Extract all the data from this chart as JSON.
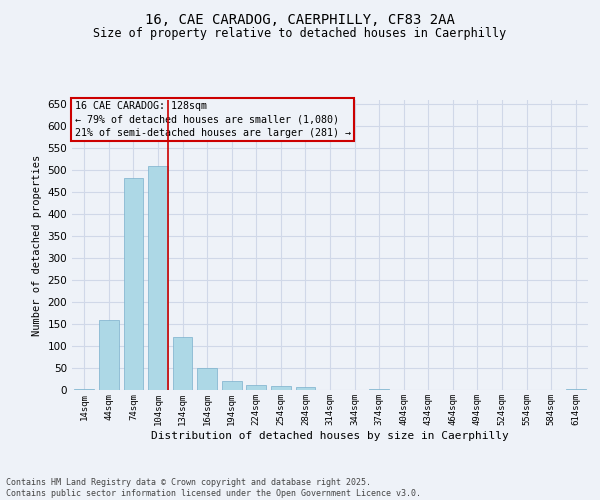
{
  "title_line1": "16, CAE CARADOG, CAERPHILLY, CF83 2AA",
  "title_line2": "Size of property relative to detached houses in Caerphilly",
  "xlabel": "Distribution of detached houses by size in Caerphilly",
  "ylabel": "Number of detached properties",
  "footer_line1": "Contains HM Land Registry data © Crown copyright and database right 2025.",
  "footer_line2": "Contains public sector information licensed under the Open Government Licence v3.0.",
  "annotation_line1": "16 CAE CARADOG: 128sqm",
  "annotation_line2": "← 79% of detached houses are smaller (1,080)",
  "annotation_line3": "21% of semi-detached houses are larger (281) →",
  "bar_labels": [
    "14sqm",
    "44sqm",
    "74sqm",
    "104sqm",
    "134sqm",
    "164sqm",
    "194sqm",
    "224sqm",
    "254sqm",
    "284sqm",
    "314sqm",
    "344sqm",
    "374sqm",
    "404sqm",
    "434sqm",
    "464sqm",
    "494sqm",
    "524sqm",
    "554sqm",
    "584sqm",
    "614sqm"
  ],
  "bar_values": [
    3,
    160,
    483,
    510,
    120,
    50,
    20,
    12,
    10,
    7,
    0,
    0,
    3,
    0,
    0,
    0,
    0,
    0,
    0,
    0,
    3
  ],
  "bar_color": "#add8e6",
  "bar_edge_color": "#7ab0cc",
  "grid_color": "#d0d8e8",
  "background_color": "#eef2f8",
  "vline_x_index": 3,
  "vline_color": "#cc0000",
  "annotation_box_color": "#cc0000",
  "ylim": [
    0,
    660
  ],
  "yticks": [
    0,
    50,
    100,
    150,
    200,
    250,
    300,
    350,
    400,
    450,
    500,
    550,
    600,
    650
  ]
}
